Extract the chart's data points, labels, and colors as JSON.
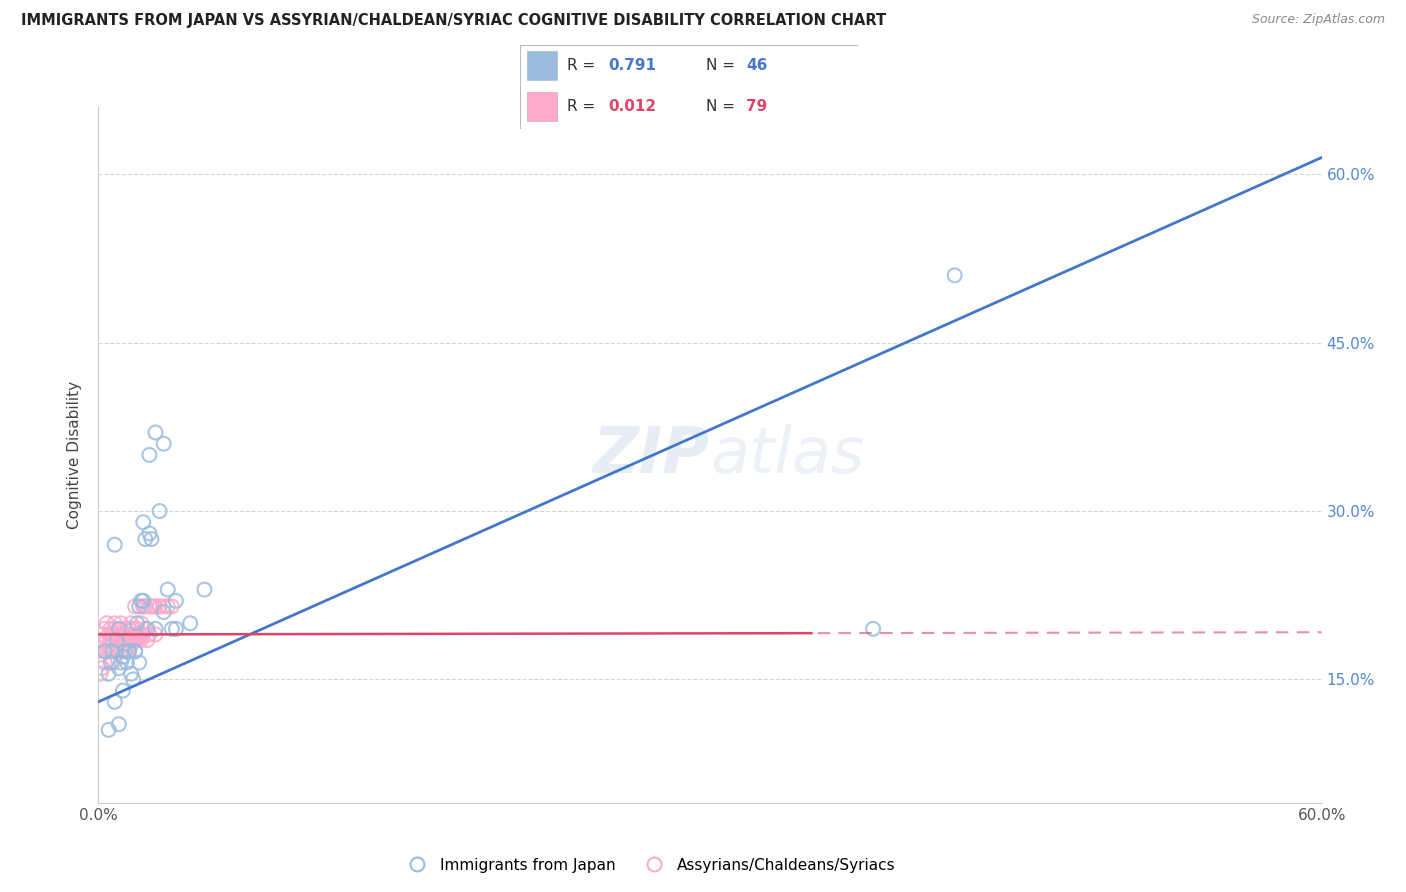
{
  "title": "IMMIGRANTS FROM JAPAN VS ASSYRIAN/CHALDEAN/SYRIAC COGNITIVE DISABILITY CORRELATION CHART",
  "source": "Source: ZipAtlas.com",
  "ylabel": "Cognitive Disability",
  "ytick_values": [
    0.15,
    0.3,
    0.45,
    0.6
  ],
  "ytick_labels": [
    "15.0%",
    "30.0%",
    "45.0%",
    "60.0%"
  ],
  "xlim": [
    0.0,
    0.6
  ],
  "ylim": [
    0.04,
    0.66
  ],
  "legend1_r": "0.791",
  "legend1_n": "46",
  "legend2_r": "0.012",
  "legend2_n": "79",
  "legend_label1": "Immigrants from Japan",
  "legend_label2": "Assyrians/Chaldeans/Syriacs",
  "color_blue": "#99BBDD",
  "color_pink": "#FFAACC",
  "color_line_blue": "#4477CC",
  "color_line_pink": "#DD4466",
  "watermark": "ZIPatlas",
  "japan_x": [
    0.003,
    0.005,
    0.006,
    0.007,
    0.008,
    0.009,
    0.01,
    0.01,
    0.011,
    0.012,
    0.013,
    0.014,
    0.015,
    0.016,
    0.017,
    0.018,
    0.019,
    0.02,
    0.021,
    0.022,
    0.023,
    0.024,
    0.025,
    0.026,
    0.028,
    0.03,
    0.032,
    0.034,
    0.036,
    0.038,
    0.005,
    0.008,
    0.01,
    0.012,
    0.015,
    0.018,
    0.02,
    0.022,
    0.025,
    0.028,
    0.032,
    0.038,
    0.045,
    0.052,
    0.38,
    0.42
  ],
  "japan_y": [
    0.175,
    0.155,
    0.165,
    0.175,
    0.27,
    0.185,
    0.195,
    0.16,
    0.165,
    0.17,
    0.175,
    0.165,
    0.175,
    0.155,
    0.15,
    0.175,
    0.2,
    0.215,
    0.22,
    0.29,
    0.275,
    0.195,
    0.28,
    0.275,
    0.195,
    0.3,
    0.21,
    0.23,
    0.195,
    0.22,
    0.105,
    0.13,
    0.11,
    0.14,
    0.175,
    0.175,
    0.165,
    0.22,
    0.35,
    0.37,
    0.36,
    0.195,
    0.2,
    0.23,
    0.195,
    0.51
  ],
  "assyrian_x": [
    0.001,
    0.002,
    0.003,
    0.003,
    0.004,
    0.004,
    0.005,
    0.005,
    0.006,
    0.006,
    0.007,
    0.007,
    0.008,
    0.008,
    0.009,
    0.009,
    0.01,
    0.01,
    0.011,
    0.011,
    0.012,
    0.012,
    0.013,
    0.013,
    0.014,
    0.014,
    0.015,
    0.015,
    0.016,
    0.016,
    0.017,
    0.017,
    0.018,
    0.018,
    0.019,
    0.019,
    0.02,
    0.02,
    0.021,
    0.021,
    0.022,
    0.022,
    0.023,
    0.023,
    0.024,
    0.025,
    0.026,
    0.027,
    0.028,
    0.03,
    0.001,
    0.002,
    0.003,
    0.004,
    0.005,
    0.006,
    0.007,
    0.008,
    0.009,
    0.01,
    0.011,
    0.012,
    0.013,
    0.014,
    0.015,
    0.016,
    0.017,
    0.018,
    0.019,
    0.02,
    0.021,
    0.028,
    0.03,
    0.032,
    0.034,
    0.036,
    0.025,
    0.022,
    0.018
  ],
  "assyrian_y": [
    0.185,
    0.19,
    0.195,
    0.175,
    0.185,
    0.2,
    0.19,
    0.18,
    0.195,
    0.185,
    0.19,
    0.185,
    0.195,
    0.2,
    0.185,
    0.19,
    0.195,
    0.185,
    0.2,
    0.195,
    0.185,
    0.19,
    0.195,
    0.185,
    0.19,
    0.185,
    0.19,
    0.195,
    0.185,
    0.2,
    0.195,
    0.185,
    0.19,
    0.185,
    0.195,
    0.19,
    0.185,
    0.19,
    0.2,
    0.185,
    0.19,
    0.215,
    0.195,
    0.215,
    0.185,
    0.19,
    0.215,
    0.215,
    0.19,
    0.215,
    0.155,
    0.16,
    0.165,
    0.175,
    0.175,
    0.175,
    0.165,
    0.175,
    0.175,
    0.185,
    0.175,
    0.185,
    0.18,
    0.175,
    0.185,
    0.18,
    0.185,
    0.185,
    0.185,
    0.185,
    0.19,
    0.215,
    0.215,
    0.215,
    0.215,
    0.215,
    0.215,
    0.215,
    0.215
  ],
  "blue_line_x0": 0.0,
  "blue_line_y0": 0.13,
  "blue_line_x1": 0.6,
  "blue_line_y1": 0.615,
  "pink_line_x0": 0.0,
  "pink_line_y0": 0.19,
  "pink_line_x1": 0.6,
  "pink_line_y1": 0.192
}
